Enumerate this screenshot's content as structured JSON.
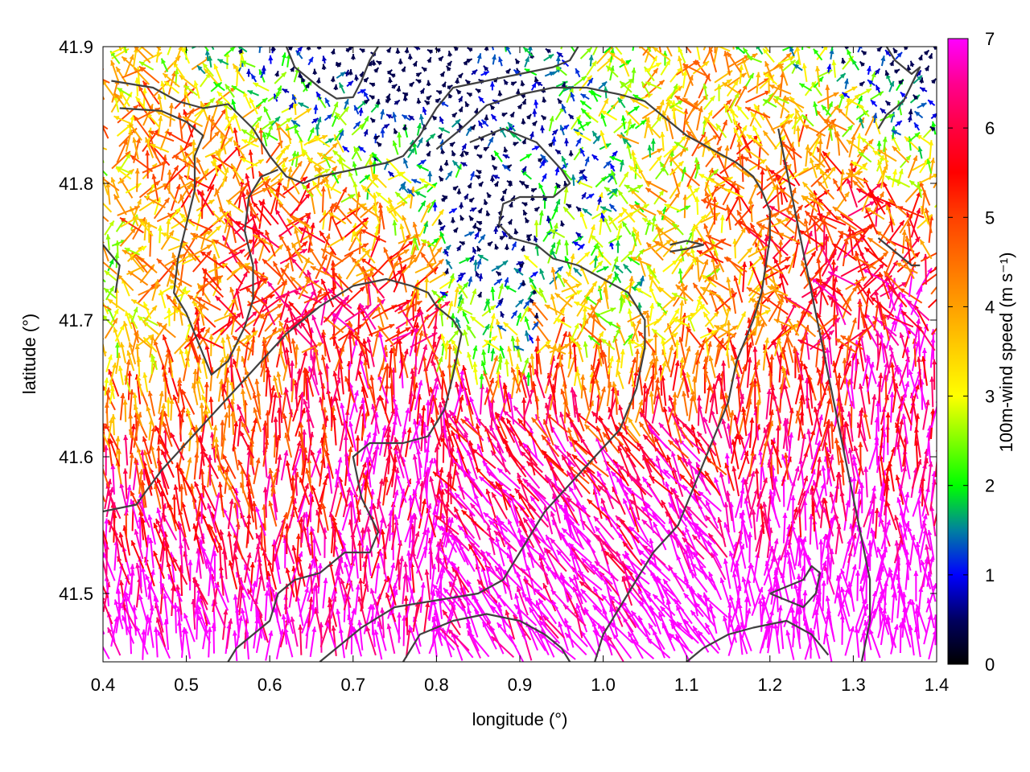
{
  "chart_data": {
    "type": "vector field with contours",
    "xlabel": "longitude (°)",
    "ylabel": "latitude (°)",
    "xlim": [
      0.4,
      1.4
    ],
    "ylim": [
      41.45,
      41.9
    ],
    "xticks": [
      "0.4",
      "0.5",
      "0.6",
      "0.7",
      "0.8",
      "0.9",
      "1.0",
      "1.1",
      "1.2",
      "1.3",
      "1.4"
    ],
    "yticks": [
      "41.5",
      "41.6",
      "41.7",
      "41.8",
      "41.9"
    ],
    "colorbar": {
      "label": "100m-wind speed (m s⁻¹)",
      "range": [
        0,
        7
      ],
      "ticks": [
        "0",
        "1",
        "2",
        "3",
        "4",
        "5",
        "6",
        "7"
      ],
      "colormap": [
        {
          "v": 0,
          "c": "#000000"
        },
        {
          "v": 0.5,
          "c": "#000060"
        },
        {
          "v": 1,
          "c": "#0000ff"
        },
        {
          "v": 1.5,
          "c": "#0080a0"
        },
        {
          "v": 2,
          "c": "#00ff00"
        },
        {
          "v": 2.5,
          "c": "#80ff00"
        },
        {
          "v": 3,
          "c": "#ffff00"
        },
        {
          "v": 3.5,
          "c": "#ffd000"
        },
        {
          "v": 4,
          "c": "#ffa000"
        },
        {
          "v": 4.5,
          "c": "#ff7000"
        },
        {
          "v": 5,
          "c": "#ff4000"
        },
        {
          "v": 5.5,
          "c": "#ff0000"
        },
        {
          "v": 6,
          "c": "#ff0040"
        },
        {
          "v": 6.5,
          "c": "#ff0090"
        },
        {
          "v": 7,
          "c": "#ff00ff"
        }
      ]
    },
    "contour_color": "#404040",
    "contours": [
      [
        [
          0.41,
          41.875
        ],
        [
          0.46,
          41.87
        ],
        [
          0.49,
          41.86
        ],
        [
          0.52,
          41.855
        ],
        [
          0.55,
          41.858
        ],
        [
          0.58,
          41.84
        ],
        [
          0.6,
          41.82
        ],
        [
          0.62,
          41.805
        ],
        [
          0.64,
          41.8
        ],
        [
          0.66,
          41.805
        ],
        [
          0.7,
          41.81
        ],
        [
          0.74,
          41.815
        ],
        [
          0.76,
          41.82
        ],
        [
          0.78,
          41.835
        ],
        [
          0.8,
          41.855
        ],
        [
          0.82,
          41.87
        ],
        [
          0.86,
          41.875
        ],
        [
          0.9,
          41.88
        ],
        [
          0.94,
          41.885
        ],
        [
          0.96,
          41.89
        ],
        [
          0.97,
          41.9
        ]
      ],
      [
        [
          0.42,
          41.855
        ],
        [
          0.47,
          41.853
        ],
        [
          0.5,
          41.845
        ],
        [
          0.52,
          41.835
        ],
        [
          0.51,
          41.82
        ],
        [
          0.51,
          41.795
        ],
        [
          0.5,
          41.77
        ],
        [
          0.49,
          41.745
        ],
        [
          0.485,
          41.72
        ],
        [
          0.5,
          41.705
        ],
        [
          0.51,
          41.69
        ],
        [
          0.52,
          41.675
        ],
        [
          0.53,
          41.66
        ],
        [
          0.55,
          41.67
        ],
        [
          0.57,
          41.695
        ],
        [
          0.58,
          41.715
        ],
        [
          0.58,
          41.74
        ],
        [
          0.57,
          41.765
        ],
        [
          0.575,
          41.79
        ],
        [
          0.59,
          41.805
        ],
        [
          0.61,
          41.81
        ]
      ],
      [
        [
          0.4,
          41.755
        ],
        [
          0.42,
          41.74
        ],
        [
          0.415,
          41.72
        ]
      ],
      [
        [
          0.62,
          41.9
        ],
        [
          0.63,
          41.885
        ],
        [
          0.66,
          41.87
        ],
        [
          0.68,
          41.862
        ],
        [
          0.7,
          41.863
        ],
        [
          0.71,
          41.875
        ],
        [
          0.72,
          41.89
        ],
        [
          0.73,
          41.9
        ]
      ],
      [
        [
          0.8,
          41.825
        ],
        [
          0.83,
          41.84
        ],
        [
          0.86,
          41.857
        ],
        [
          0.9,
          41.865
        ],
        [
          0.94,
          41.87
        ],
        [
          0.98,
          41.87
        ],
        [
          1.02,
          41.865
        ],
        [
          1.05,
          41.86
        ],
        [
          1.08,
          41.845
        ],
        [
          1.1,
          41.835
        ],
        [
          1.13,
          41.825
        ],
        [
          1.16,
          41.815
        ],
        [
          1.18,
          41.805
        ],
        [
          1.19,
          41.795
        ],
        [
          1.2,
          41.78
        ],
        [
          1.2,
          41.76
        ],
        [
          1.195,
          41.74
        ],
        [
          1.19,
          41.72
        ],
        [
          1.18,
          41.7
        ],
        [
          1.16,
          41.67
        ],
        [
          1.15,
          41.64
        ],
        [
          1.13,
          41.61
        ],
        [
          1.11,
          41.58
        ],
        [
          1.09,
          41.55
        ],
        [
          1.06,
          41.53
        ],
        [
          1.04,
          41.51
        ],
        [
          1.02,
          41.49
        ],
        [
          1.0,
          41.47
        ],
        [
          0.99,
          41.45
        ]
      ],
      [
        [
          0.84,
          41.83
        ],
        [
          0.88,
          41.84
        ],
        [
          0.92,
          41.83
        ],
        [
          0.95,
          41.81
        ],
        [
          0.96,
          41.8
        ],
        [
          0.94,
          41.79
        ],
        [
          0.9,
          41.79
        ],
        [
          0.88,
          41.785
        ],
        [
          0.875,
          41.77
        ],
        [
          0.89,
          41.76
        ],
        [
          0.92,
          41.755
        ],
        [
          0.94,
          41.745
        ],
        [
          0.97,
          41.74
        ],
        [
          1.0,
          41.73
        ],
        [
          1.03,
          41.72
        ],
        [
          1.05,
          41.7
        ],
        [
          1.05,
          41.68
        ],
        [
          1.04,
          41.65
        ],
        [
          1.02,
          41.62
        ],
        [
          0.99,
          41.6
        ],
        [
          0.96,
          41.58
        ],
        [
          0.93,
          41.56
        ],
        [
          0.9,
          41.53
        ],
        [
          0.88,
          41.51
        ],
        [
          0.85,
          41.5
        ],
        [
          0.8,
          41.495
        ],
        [
          0.75,
          41.49
        ],
        [
          0.71,
          41.475
        ],
        [
          0.68,
          41.46
        ],
        [
          0.66,
          41.45
        ]
      ],
      [
        [
          0.4,
          41.56
        ],
        [
          0.44,
          41.565
        ],
        [
          0.47,
          41.59
        ],
        [
          0.5,
          41.61
        ],
        [
          0.53,
          41.63
        ],
        [
          0.56,
          41.65
        ],
        [
          0.59,
          41.67
        ],
        [
          0.62,
          41.69
        ],
        [
          0.66,
          41.71
        ],
        [
          0.7,
          41.725
        ],
        [
          0.74,
          41.73
        ],
        [
          0.77,
          41.725
        ],
        [
          0.79,
          41.72
        ],
        [
          0.8,
          41.71
        ],
        [
          0.82,
          41.7
        ],
        [
          0.83,
          41.69
        ],
        [
          0.82,
          41.66
        ],
        [
          0.81,
          41.635
        ],
        [
          0.79,
          41.615
        ],
        [
          0.76,
          41.61
        ],
        [
          0.72,
          41.61
        ],
        [
          0.7,
          41.6
        ],
        [
          0.71,
          41.57
        ],
        [
          0.73,
          41.545
        ],
        [
          0.72,
          41.53
        ],
        [
          0.69,
          41.53
        ],
        [
          0.66,
          41.515
        ],
        [
          0.63,
          41.51
        ],
        [
          0.61,
          41.5
        ],
        [
          0.6,
          41.48
        ],
        [
          0.58,
          41.47
        ],
        [
          0.56,
          41.46
        ],
        [
          0.55,
          41.45
        ]
      ],
      [
        [
          0.76,
          41.45
        ],
        [
          0.78,
          41.47
        ],
        [
          0.82,
          41.48
        ],
        [
          0.86,
          41.485
        ],
        [
          0.9,
          41.48
        ],
        [
          0.93,
          41.47
        ],
        [
          0.95,
          41.46
        ],
        [
          0.96,
          41.45
        ]
      ],
      [
        [
          1.34,
          41.9
        ],
        [
          1.35,
          41.89
        ],
        [
          1.37,
          41.88
        ],
        [
          1.38,
          41.885
        ],
        [
          1.36,
          41.86
        ],
        [
          1.34,
          41.85
        ],
        [
          1.33,
          41.84
        ]
      ],
      [
        [
          1.08,
          41.75
        ],
        [
          1.1,
          41.752
        ],
        [
          1.12,
          41.755
        ],
        [
          1.1,
          41.758
        ],
        [
          1.08,
          41.755
        ]
      ],
      [
        [
          1.33,
          41.76
        ],
        [
          1.35,
          41.75
        ],
        [
          1.37,
          41.74
        ],
        [
          1.38,
          41.74
        ]
      ],
      [
        [
          1.31,
          41.45
        ],
        [
          1.32,
          41.48
        ],
        [
          1.32,
          41.51
        ],
        [
          1.31,
          41.54
        ],
        [
          1.3,
          41.57
        ],
        [
          1.29,
          41.6
        ],
        [
          1.28,
          41.63
        ],
        [
          1.27,
          41.66
        ],
        [
          1.26,
          41.69
        ],
        [
          1.25,
          41.72
        ],
        [
          1.24,
          41.75
        ],
        [
          1.23,
          41.78
        ],
        [
          1.22,
          41.81
        ],
        [
          1.21,
          41.84
        ]
      ],
      [
        [
          1.2,
          41.5
        ],
        [
          1.22,
          41.505
        ],
        [
          1.24,
          41.51
        ],
        [
          1.25,
          41.52
        ],
        [
          1.26,
          41.515
        ],
        [
          1.255,
          41.5
        ],
        [
          1.24,
          41.49
        ],
        [
          1.22,
          41.495
        ],
        [
          1.2,
          41.5
        ]
      ],
      [
        [
          1.1,
          41.45
        ],
        [
          1.12,
          41.46
        ],
        [
          1.15,
          41.47
        ],
        [
          1.18,
          41.475
        ],
        [
          1.22,
          41.48
        ],
        [
          1.25,
          41.47
        ],
        [
          1.27,
          41.455
        ]
      ]
    ],
    "vector_field": {
      "lon_range": [
        0.4,
        1.4
      ],
      "lat_range": [
        41.45,
        41.9
      ],
      "grid": [
        78,
        58
      ],
      "max_speed": 7
    }
  }
}
